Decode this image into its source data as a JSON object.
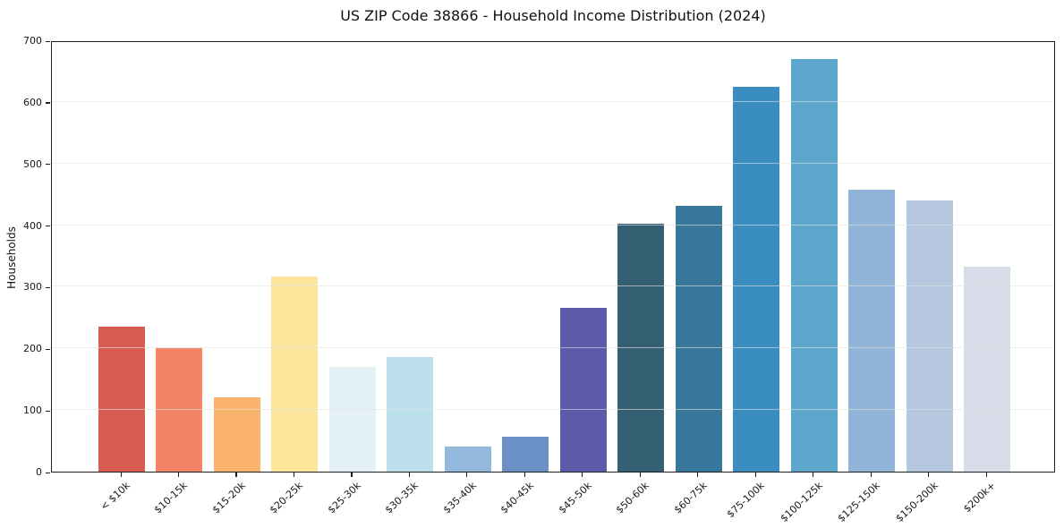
{
  "chart_data": {
    "type": "bar",
    "title": "US ZIP Code 38866 - Household Income Distribution (2024)",
    "xlabel": "",
    "ylabel": "Households",
    "ylim": [
      0,
      700
    ],
    "yticks": [
      0,
      100,
      200,
      300,
      400,
      500,
      600,
      700
    ],
    "grid": "horizontal-light-over-bars",
    "legend_position": "none",
    "frame": "full-box",
    "categories": [
      "< $10k",
      "$10-15k",
      "$15-20k",
      "$20-25k",
      "$25-30k",
      "$30-35k",
      "$35-40k",
      "$40-45k",
      "$45-50k",
      "$50-60k",
      "$60-75k",
      "$75-100k",
      "$100-125k",
      "$125-150k",
      "$150-200k",
      "$200k+"
    ],
    "values": [
      235,
      200,
      120,
      317,
      170,
      186,
      41,
      56,
      266,
      403,
      432,
      624,
      670,
      458,
      440,
      333
    ],
    "bar_colors": [
      "#d65c52",
      "#f28565",
      "#fab36a",
      "#fde59c",
      "#e4f1f6",
      "#bbdfeb",
      "#92b9dc",
      "#6b90c6",
      "#5b5ba9",
      "#355f72",
      "#38789c",
      "#398dc1",
      "#5ea7cc",
      "#90b5d8",
      "#b5c8df",
      "#d8dbe8"
    ],
    "spine_color": "#1f1f1f"
  }
}
